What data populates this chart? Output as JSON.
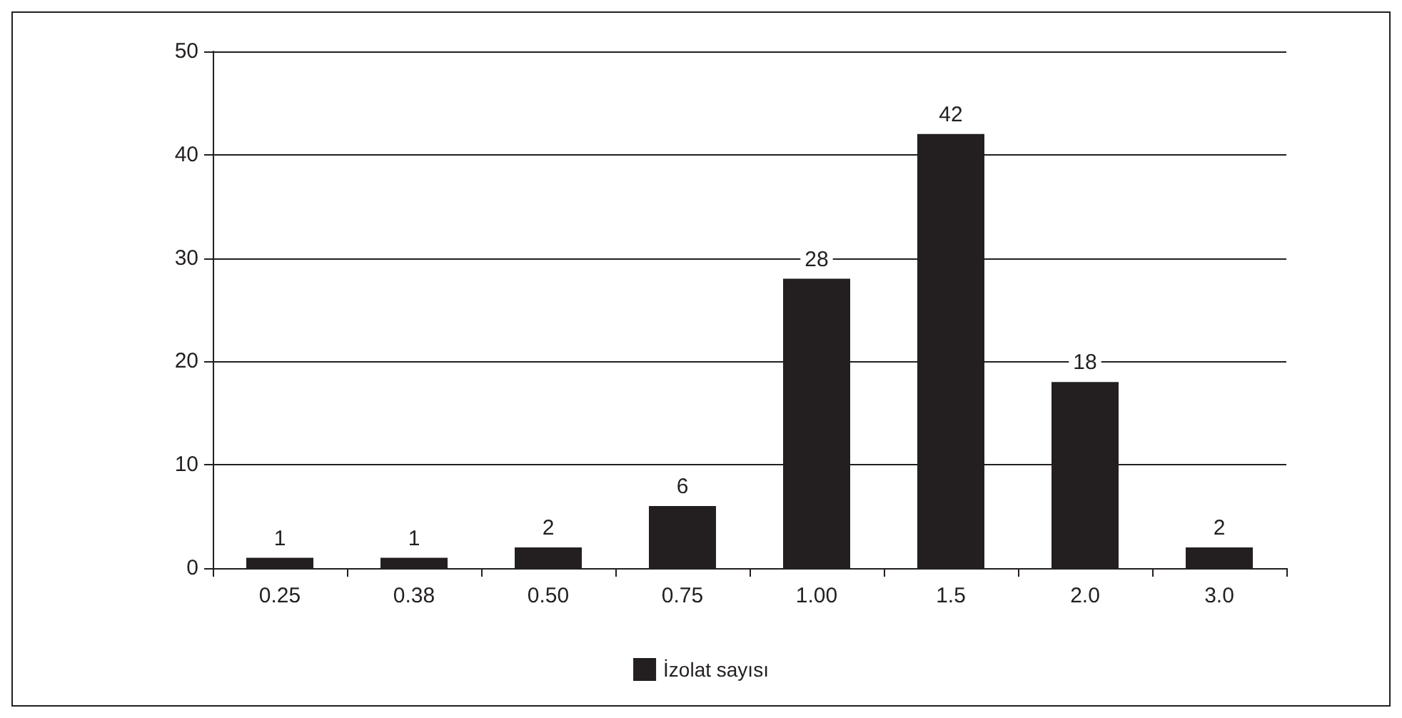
{
  "chart_data": {
    "type": "bar",
    "categories": [
      "0.25",
      "0.38",
      "0.50",
      "0.75",
      "1.00",
      "1.5",
      "2.0",
      "3.0"
    ],
    "series": [
      {
        "name": "İzolat sayısı",
        "color": "#231f20",
        "values": [
          1,
          1,
          2,
          6,
          28,
          42,
          18,
          2
        ]
      }
    ],
    "ylim": [
      0,
      50
    ],
    "yticks": [
      0,
      10,
      20,
      30,
      40,
      50
    ],
    "grid": "y",
    "legend": "bottom",
    "data_labels": true
  }
}
